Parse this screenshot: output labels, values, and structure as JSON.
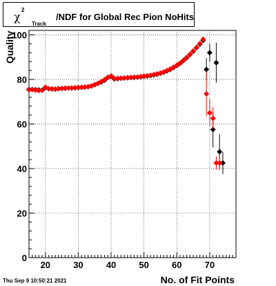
{
  "title": {
    "symbol": "χ",
    "superscript": "2",
    "subscript": "Track",
    "text": "/NDF for Global Rec Pion NoHits"
  },
  "timestamp": "Thu Sep  9 10:50:21 2021",
  "chart_data": {
    "type": "scatter",
    "xlabel": "No. of Fit Points",
    "ylabel": "Quality",
    "xlim": [
      15,
      78
    ],
    "ylim": [
      0,
      102
    ],
    "xticks": [
      20,
      30,
      40,
      50,
      60,
      70
    ],
    "yticks": [
      0,
      20,
      40,
      60,
      80,
      100
    ],
    "grid": true,
    "series": [
      {
        "color": "#000000",
        "points": [
          {
            "x": 15,
            "y": 75.5
          },
          {
            "x": 16,
            "y": 75.5
          },
          {
            "x": 17,
            "y": 75.4
          },
          {
            "x": 18,
            "y": 75.3
          },
          {
            "x": 19,
            "y": 75.2
          },
          {
            "x": 20,
            "y": 76.3
          },
          {
            "x": 21,
            "y": 75.8
          },
          {
            "x": 22,
            "y": 75.7
          },
          {
            "x": 23,
            "y": 75.6
          },
          {
            "x": 24,
            "y": 75.8
          },
          {
            "x": 25,
            "y": 75.9
          },
          {
            "x": 26,
            "y": 76.0
          },
          {
            "x": 27,
            "y": 76.1
          },
          {
            "x": 28,
            "y": 76.1
          },
          {
            "x": 29,
            "y": 76.2
          },
          {
            "x": 30,
            "y": 76.3
          },
          {
            "x": 31,
            "y": 76.4
          },
          {
            "x": 32,
            "y": 76.5
          },
          {
            "x": 33,
            "y": 76.7
          },
          {
            "x": 34,
            "y": 77.0
          },
          {
            "x": 35,
            "y": 77.6
          },
          {
            "x": 36,
            "y": 78.2
          },
          {
            "x": 37,
            "y": 78.8
          },
          {
            "x": 38,
            "y": 79.6
          },
          {
            "x": 39,
            "y": 80.8
          },
          {
            "x": 40,
            "y": 81.3
          },
          {
            "x": 41,
            "y": 80.2
          },
          {
            "x": 42,
            "y": 80.3
          },
          {
            "x": 43,
            "y": 80.5
          },
          {
            "x": 44,
            "y": 80.6
          },
          {
            "x": 45,
            "y": 80.7
          },
          {
            "x": 46,
            "y": 80.8
          },
          {
            "x": 47,
            "y": 80.9
          },
          {
            "x": 48,
            "y": 81.0
          },
          {
            "x": 49,
            "y": 81.1
          },
          {
            "x": 50,
            "y": 81.3
          },
          {
            "x": 51,
            "y": 81.5
          },
          {
            "x": 52,
            "y": 81.7
          },
          {
            "x": 53,
            "y": 82.0
          },
          {
            "x": 54,
            "y": 82.3
          },
          {
            "x": 55,
            "y": 82.7
          },
          {
            "x": 56,
            "y": 83.2
          },
          {
            "x": 57,
            "y": 83.8
          },
          {
            "x": 58,
            "y": 84.5
          },
          {
            "x": 59,
            "y": 85.3
          },
          {
            "x": 60,
            "y": 86.2
          },
          {
            "x": 61,
            "y": 87.2
          },
          {
            "x": 62,
            "y": 88.4
          },
          {
            "x": 63,
            "y": 89.7
          },
          {
            "x": 64,
            "y": 91.1
          },
          {
            "x": 65,
            "y": 92.6
          },
          {
            "x": 66,
            "y": 94.2
          },
          {
            "x": 67,
            "y": 95.8
          },
          {
            "x": 68,
            "y": 97.5
          },
          {
            "x": 69,
            "y": 84.5,
            "err": 5.0
          },
          {
            "x": 70,
            "y": 92.0,
            "err": 4.0
          },
          {
            "x": 71,
            "y": 57.5,
            "err": 8.0
          },
          {
            "x": 72,
            "y": 87.5,
            "err": 9.0
          },
          {
            "x": 73,
            "y": 47.5,
            "err": 8.0
          },
          {
            "x": 74,
            "y": 42.5,
            "err": 5.0
          }
        ]
      },
      {
        "color": "#ff0000",
        "points": [
          {
            "x": 15,
            "y": 75.3
          },
          {
            "x": 16,
            "y": 75.4
          },
          {
            "x": 17,
            "y": 75.2
          },
          {
            "x": 18,
            "y": 75.0
          },
          {
            "x": 19,
            "y": 75.1
          },
          {
            "x": 20,
            "y": 76.5
          },
          {
            "x": 21,
            "y": 75.9
          },
          {
            "x": 22,
            "y": 75.8
          },
          {
            "x": 23,
            "y": 75.7
          },
          {
            "x": 24,
            "y": 75.9
          },
          {
            "x": 25,
            "y": 76.0
          },
          {
            "x": 26,
            "y": 76.1
          },
          {
            "x": 27,
            "y": 76.1
          },
          {
            "x": 28,
            "y": 76.2
          },
          {
            "x": 29,
            "y": 76.3
          },
          {
            "x": 30,
            "y": 76.4
          },
          {
            "x": 31,
            "y": 76.5
          },
          {
            "x": 32,
            "y": 76.6
          },
          {
            "x": 33,
            "y": 76.8
          },
          {
            "x": 34,
            "y": 77.1
          },
          {
            "x": 35,
            "y": 77.7
          },
          {
            "x": 36,
            "y": 78.3
          },
          {
            "x": 37,
            "y": 79.0
          },
          {
            "x": 38,
            "y": 79.9
          },
          {
            "x": 39,
            "y": 81.0
          },
          {
            "x": 40,
            "y": 81.6
          },
          {
            "x": 41,
            "y": 80.4
          },
          {
            "x": 42,
            "y": 80.5
          },
          {
            "x": 43,
            "y": 80.6
          },
          {
            "x": 44,
            "y": 80.7
          },
          {
            "x": 45,
            "y": 80.8
          },
          {
            "x": 46,
            "y": 80.9
          },
          {
            "x": 47,
            "y": 81.0
          },
          {
            "x": 48,
            "y": 81.1
          },
          {
            "x": 49,
            "y": 81.3
          },
          {
            "x": 50,
            "y": 81.5
          },
          {
            "x": 51,
            "y": 81.7
          },
          {
            "x": 52,
            "y": 81.9
          },
          {
            "x": 53,
            "y": 82.2
          },
          {
            "x": 54,
            "y": 82.5
          },
          {
            "x": 55,
            "y": 82.9
          },
          {
            "x": 56,
            "y": 83.4
          },
          {
            "x": 57,
            "y": 84.0
          },
          {
            "x": 58,
            "y": 84.7
          },
          {
            "x": 59,
            "y": 85.5
          },
          {
            "x": 60,
            "y": 86.4
          },
          {
            "x": 61,
            "y": 87.4
          },
          {
            "x": 62,
            "y": 88.6
          },
          {
            "x": 63,
            "y": 89.9
          },
          {
            "x": 64,
            "y": 91.3
          },
          {
            "x": 65,
            "y": 92.8
          },
          {
            "x": 66,
            "y": 94.4
          },
          {
            "x": 67,
            "y": 96.1
          },
          {
            "x": 68,
            "y": 98.0
          },
          {
            "x": 69,
            "y": 73.5,
            "err": 10.0
          },
          {
            "x": 70,
            "y": 65.0,
            "err": 6.0
          },
          {
            "x": 71,
            "y": 62.5,
            "err": 5.0
          },
          {
            "x": 72,
            "y": 42.5,
            "err": 3.0
          },
          {
            "x": 73,
            "y": 42.5,
            "err": 3.0
          }
        ]
      }
    ]
  }
}
